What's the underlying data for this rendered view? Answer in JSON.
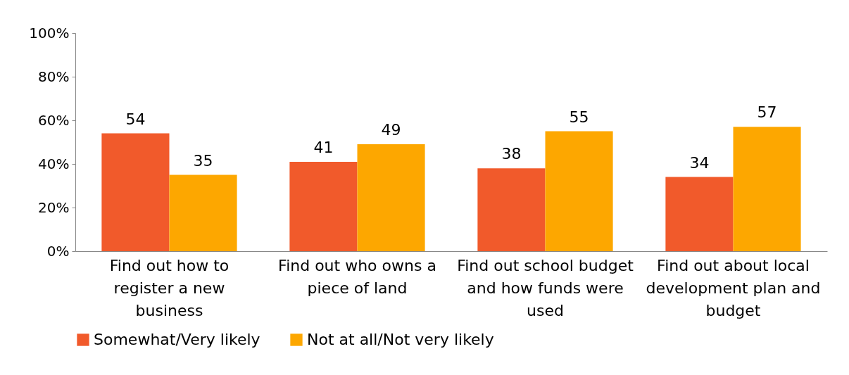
{
  "chart_data": {
    "type": "bar",
    "categories": [
      "Find out how to register a new business",
      "Find out who owns a piece of land",
      "Find out school budget and how funds were used",
      "Find out about local development plan and budget"
    ],
    "series": [
      {
        "name": "Somewhat/Very likely",
        "color": "#f15a2b",
        "values": [
          54,
          41,
          38,
          34
        ]
      },
      {
        "name": "Not at all/Not very likely",
        "color": "#fda700",
        "values": [
          35,
          49,
          55,
          57
        ]
      }
    ],
    "ylim": [
      0,
      100
    ],
    "yticks": [
      {
        "value": 0,
        "label": "0%"
      },
      {
        "value": 20,
        "label": "20%"
      },
      {
        "value": 40,
        "label": "40%"
      },
      {
        "value": 60,
        "label": "60%"
      },
      {
        "value": 80,
        "label": "80%"
      },
      {
        "value": 100,
        "label": "100%"
      }
    ],
    "data_labels": true,
    "legend": "bottom"
  }
}
